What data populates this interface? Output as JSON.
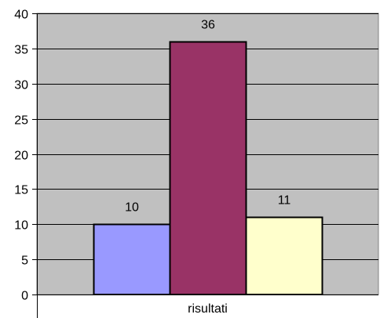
{
  "chart_data": {
    "type": "bar",
    "title": "",
    "xlabel": "",
    "ylabel": "",
    "categories": [
      "risultati"
    ],
    "series": [
      {
        "values": [
          10
        ],
        "color": "#9999ff"
      },
      {
        "values": [
          36
        ],
        "color": "#993366"
      },
      {
        "values": [
          11
        ],
        "color": "#ffffcc"
      }
    ],
    "ylim": [
      0,
      40
    ],
    "yticks": [
      "0",
      "5",
      "10",
      "15",
      "20",
      "25",
      "30",
      "35",
      "40"
    ],
    "grid": true,
    "legend": "none",
    "data_labels": [
      "10",
      "36",
      "11"
    ],
    "plot_background": "#c0c0c0"
  }
}
